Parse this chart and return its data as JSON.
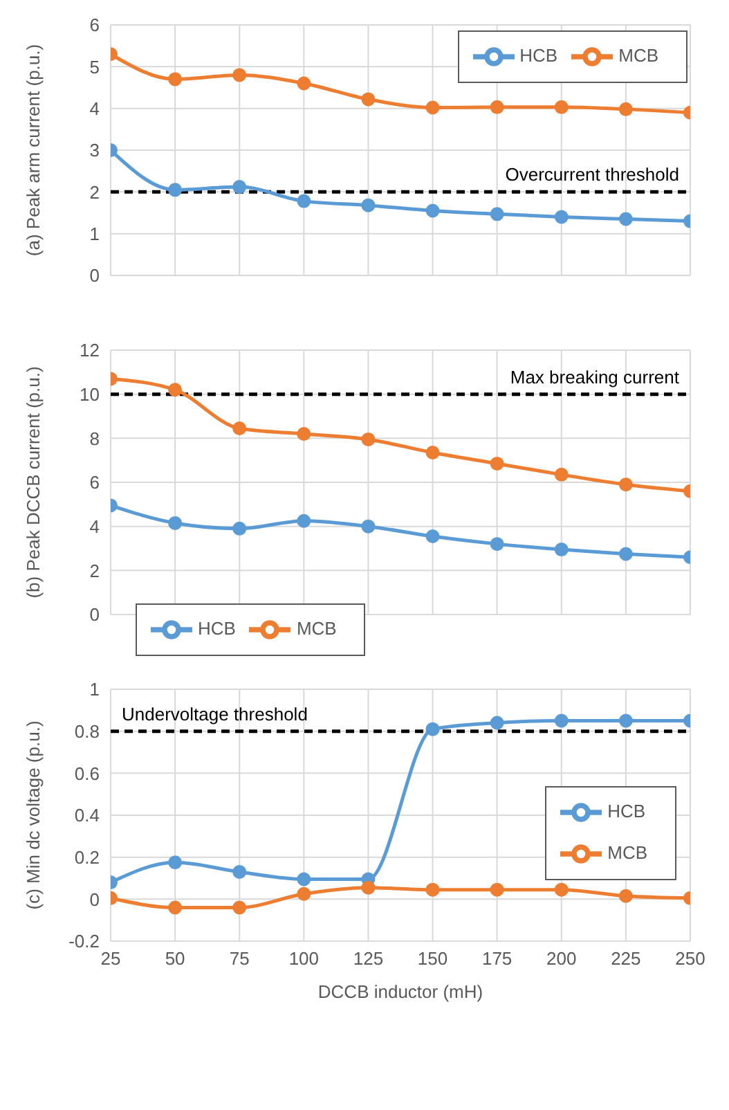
{
  "chart_data": [
    {
      "type": "line",
      "ylabel": "(a) Peak arm current (p.u.)",
      "x": [
        25,
        50,
        75,
        100,
        125,
        150,
        175,
        200,
        225,
        250
      ],
      "xlim": [
        25,
        250
      ],
      "xticks": [
        25,
        50,
        75,
        100,
        125,
        150,
        175,
        200,
        225,
        250
      ],
      "ylim": [
        0,
        6
      ],
      "yticks": [
        0,
        1,
        2,
        3,
        4,
        5,
        6
      ],
      "tick_labels": "y",
      "grid": true,
      "legend": "top right",
      "marker": "circle",
      "line_style": "solid",
      "series": [
        {
          "name": "HCB",
          "color": "#5b9bd5",
          "values": [
            3.0,
            2.05,
            2.12,
            1.78,
            1.68,
            1.55,
            1.47,
            1.4,
            1.35,
            1.3
          ]
        },
        {
          "name": "MCB",
          "color": "#ed7d31",
          "values": [
            5.3,
            4.7,
            4.8,
            4.6,
            4.22,
            4.02,
            4.03,
            4.03,
            3.98,
            3.9
          ]
        }
      ],
      "ref_lines": [
        {
          "axis": "y",
          "value": 2,
          "label": "Overcurrent threshold",
          "color": "#000000",
          "line_style": "dashed"
        }
      ]
    },
    {
      "type": "line",
      "ylabel": "(b) Peak DCCB current (p.u.)",
      "x": [
        25,
        50,
        75,
        100,
        125,
        150,
        175,
        200,
        225,
        250
      ],
      "xlim": [
        25,
        250
      ],
      "xticks": [
        25,
        50,
        75,
        100,
        125,
        150,
        175,
        200,
        225,
        250
      ],
      "ylim": [
        0,
        12
      ],
      "yticks": [
        0,
        2,
        4,
        6,
        8,
        10,
        12
      ],
      "tick_labels": "y",
      "grid": true,
      "legend": "bottom left",
      "marker": "circle",
      "line_style": "solid",
      "series": [
        {
          "name": "HCB",
          "color": "#5b9bd5",
          "values": [
            4.95,
            4.15,
            3.9,
            4.25,
            4.0,
            3.55,
            3.2,
            2.95,
            2.75,
            2.6
          ]
        },
        {
          "name": "MCB",
          "color": "#ed7d31",
          "values": [
            10.7,
            10.2,
            8.45,
            8.2,
            7.95,
            7.35,
            6.85,
            6.35,
            5.9,
            5.6
          ]
        }
      ],
      "ref_lines": [
        {
          "axis": "y",
          "value": 10,
          "label": "Max breaking current",
          "color": "#000000",
          "line_style": "dashed"
        }
      ]
    },
    {
      "type": "line",
      "xlabel": "DCCB inductor (mH)",
      "ylabel": "(c) Min dc voltage (p.u.)",
      "x": [
        25,
        50,
        75,
        100,
        125,
        150,
        175,
        200,
        225,
        250
      ],
      "xlim": [
        25,
        250
      ],
      "xticks": [
        25,
        50,
        75,
        100,
        125,
        150,
        175,
        200,
        225,
        250
      ],
      "ylim": [
        -0.2,
        1
      ],
      "yticks": [
        -0.2,
        0,
        0.2,
        0.4,
        0.6,
        0.8,
        1
      ],
      "grid": true,
      "legend": "right",
      "marker": "circle",
      "line_style": "solid",
      "series": [
        {
          "name": "HCB",
          "color": "#5b9bd5",
          "values": [
            0.08,
            0.175,
            0.13,
            0.095,
            0.095,
            0.81,
            0.84,
            0.85,
            0.85,
            0.85
          ]
        },
        {
          "name": "MCB",
          "color": "#ed7d31",
          "values": [
            0.005,
            -0.04,
            -0.04,
            0.025,
            0.055,
            0.045,
            0.045,
            0.045,
            0.015,
            0.005
          ]
        }
      ],
      "ref_lines": [
        {
          "axis": "y",
          "value": 0.8,
          "label": "Undervoltage threshold",
          "color": "#000000",
          "line_style": "dashed"
        }
      ]
    }
  ]
}
